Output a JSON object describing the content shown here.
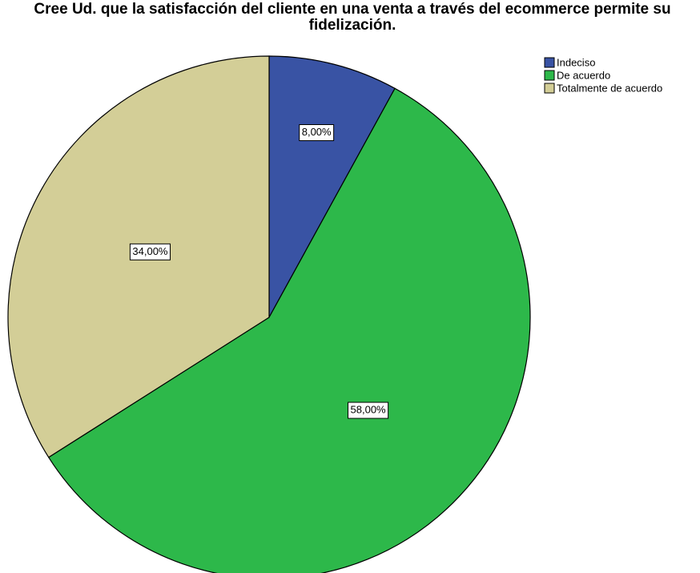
{
  "chart_data": {
    "type": "pie",
    "title": "Cree Ud. que la satisfacción del cliente en una venta a través del ecommerce permite su fidelización.",
    "categories": [
      "Indeciso",
      "De acuerdo",
      "Totalmente de acuerdo"
    ],
    "values": [
      8,
      58,
      34
    ],
    "value_labels": [
      "8,00%",
      "58,00%",
      "34,00%"
    ],
    "colors": [
      "#3953a4",
      "#2db84a",
      "#d3ce97"
    ],
    "legend": "top-right"
  }
}
